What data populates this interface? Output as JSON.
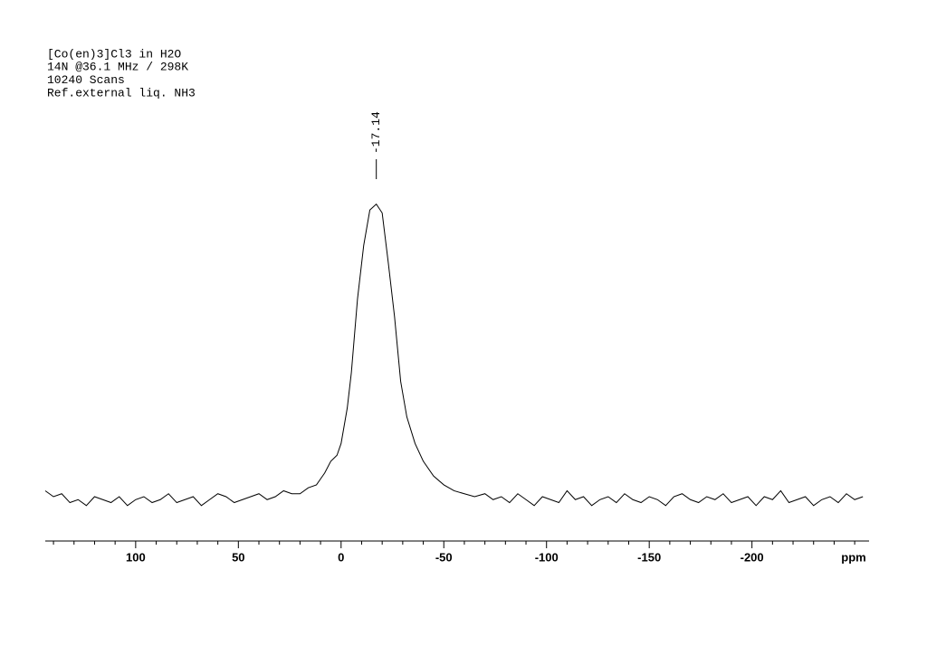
{
  "chart_data": {
    "type": "line",
    "annotations": [
      "[Co(en)3]Cl3 in H2O",
      "14N @36.1 MHz / 298K",
      "10240 Scans",
      "Ref.external liq. NH3"
    ],
    "x_label": "ppm",
    "xlim": [
      144,
      -257
    ],
    "ylim": [
      -14,
      106
    ],
    "xticks": [
      100,
      50,
      0,
      -50,
      -100,
      -150,
      -200
    ],
    "xminorticks": [
      140,
      130,
      120,
      110,
      90,
      80,
      70,
      60,
      40,
      30,
      20,
      10,
      -10,
      -20,
      -30,
      -40,
      -60,
      -70,
      -80,
      -90,
      -110,
      -120,
      -130,
      -140,
      -160,
      -170,
      -180,
      -190,
      -210,
      -220,
      -230,
      -240,
      -250
    ],
    "peaks": [
      -17.14
    ],
    "color": "#000000",
    "x": [
      144,
      140,
      136,
      132,
      128,
      124,
      120,
      116,
      112,
      108,
      104,
      100,
      96,
      92,
      88,
      84,
      80,
      76,
      72,
      68,
      64,
      60,
      56,
      52,
      48,
      44,
      40,
      36,
      32,
      28,
      24,
      20,
      16,
      12,
      10,
      8,
      5,
      2,
      0,
      -3,
      -5,
      -8,
      -11,
      -14,
      -17.14,
      -20,
      -23,
      -26,
      -29,
      -32,
      -36,
      -40,
      -45,
      -50,
      -55,
      -60,
      -65,
      -70,
      -74,
      -78,
      -82,
      -86,
      -90,
      -94,
      -98,
      -102,
      -106,
      -110,
      -114,
      -118,
      -122,
      -126,
      -130,
      -134,
      -138,
      -142,
      -146,
      -150,
      -154,
      -158,
      -162,
      -166,
      -170,
      -174,
      -178,
      -182,
      -186,
      -190,
      -194,
      -198,
      -202,
      -206,
      -210,
      -214,
      -218,
      -222,
      -226,
      -230,
      -234,
      -238,
      -242,
      -246,
      -250,
      -254
    ],
    "values": [
      3,
      1,
      2,
      -1,
      0,
      -2,
      1,
      0,
      -1,
      1,
      -2,
      0,
      1,
      -1,
      0,
      2,
      -1,
      0,
      1,
      -2,
      0,
      2,
      1,
      -1,
      0,
      1,
      2,
      0,
      1,
      3,
      2,
      2,
      4,
      5,
      7,
      9,
      13,
      15,
      19,
      31,
      43,
      68,
      86,
      98,
      100,
      97,
      80,
      62,
      40,
      28,
      19,
      13,
      8,
      5,
      3,
      2,
      1,
      2,
      0,
      1,
      -1,
      2,
      0,
      -2,
      1,
      0,
      -1,
      3,
      0,
      1,
      -2,
      0,
      1,
      -1,
      2,
      0,
      -1,
      1,
      0,
      -2,
      1,
      2,
      0,
      -1,
      1,
      0,
      2,
      -1,
      0,
      1,
      -2,
      1,
      0,
      3,
      -1,
      0,
      1,
      -2,
      0,
      1,
      -1,
      2,
      0,
      1
    ]
  }
}
